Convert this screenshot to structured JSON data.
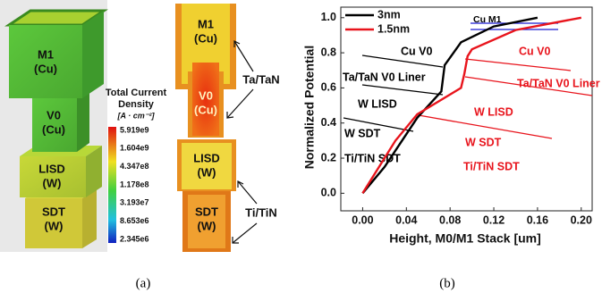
{
  "panel_a": {
    "blocks": [
      {
        "name": "M1",
        "material": "(Cu)"
      },
      {
        "name": "V0",
        "material": "(Cu)"
      },
      {
        "name": "LISD",
        "material": "(W)"
      },
      {
        "name": "SDT",
        "material": "(W)"
      }
    ],
    "colorbar": {
      "title_1": "Total Current",
      "title_2": "Density",
      "unit": "[A · cm⁻²]",
      "labels": [
        "5.919e9",
        "1.604e9",
        "4.347e8",
        "1.178e8",
        "3.193e7",
        "8.653e6",
        "2.345e6"
      ]
    },
    "section_blocks": [
      {
        "name": "M1",
        "material": "(Cu)"
      },
      {
        "name": "V0",
        "material": "(Cu)"
      },
      {
        "name": "LISD",
        "material": "(W)"
      },
      {
        "name": "SDT",
        "material": "(W)"
      }
    ],
    "liners": [
      "Ta/TaN",
      "Ti/TiN"
    ],
    "caption": "(a)"
  },
  "chart_data": {
    "type": "line",
    "xlabel": "Height, M0/M1 Stack [um]",
    "ylabel": "Normalized Potential",
    "xlim": [
      -0.02,
      0.21
    ],
    "ylim": [
      -0.1,
      1.06
    ],
    "xticks": [
      {
        "value": 0,
        "label": "0.00"
      },
      0.04,
      0.08,
      0.12,
      0.16,
      {
        "value": 0.2,
        "label": "0.20"
      }
    ],
    "yticks": [
      {
        "value": 0,
        "label": "0.0"
      },
      0.2,
      0.4,
      0.6,
      0.8,
      {
        "value": 1,
        "label": "1.0"
      }
    ],
    "legend": "upper left",
    "series": [
      {
        "name": "3nm",
        "color": "#000000",
        "x": [
          0,
          0.02,
          0.05,
          0.072,
          0.075,
          0.09,
          0.12,
          0.16
        ],
        "values": [
          0,
          0.15,
          0.43,
          0.58,
          0.73,
          0.86,
          0.95,
          1.0
        ]
      },
      {
        "name": "1.5nm",
        "color": "#e8141c",
        "x": [
          0,
          0.03,
          0.05,
          0.09,
          0.093,
          0.096,
          0.1,
          0.14,
          0.2
        ],
        "values": [
          0,
          0.3,
          0.45,
          0.6,
          0.68,
          0.78,
          0.82,
          0.93,
          1.0
        ]
      }
    ],
    "annotations": [
      "Cu M1",
      "Cu V0",
      "Ta/TaN V0 Liner",
      "W LISD",
      "W SDT",
      "Ti/TiN SDT",
      "Cu V0",
      "Ta/TaN V0 Liner",
      "W LISD",
      "W SDT",
      "Ti/TiN SDT"
    ],
    "caption": "(b)"
  }
}
